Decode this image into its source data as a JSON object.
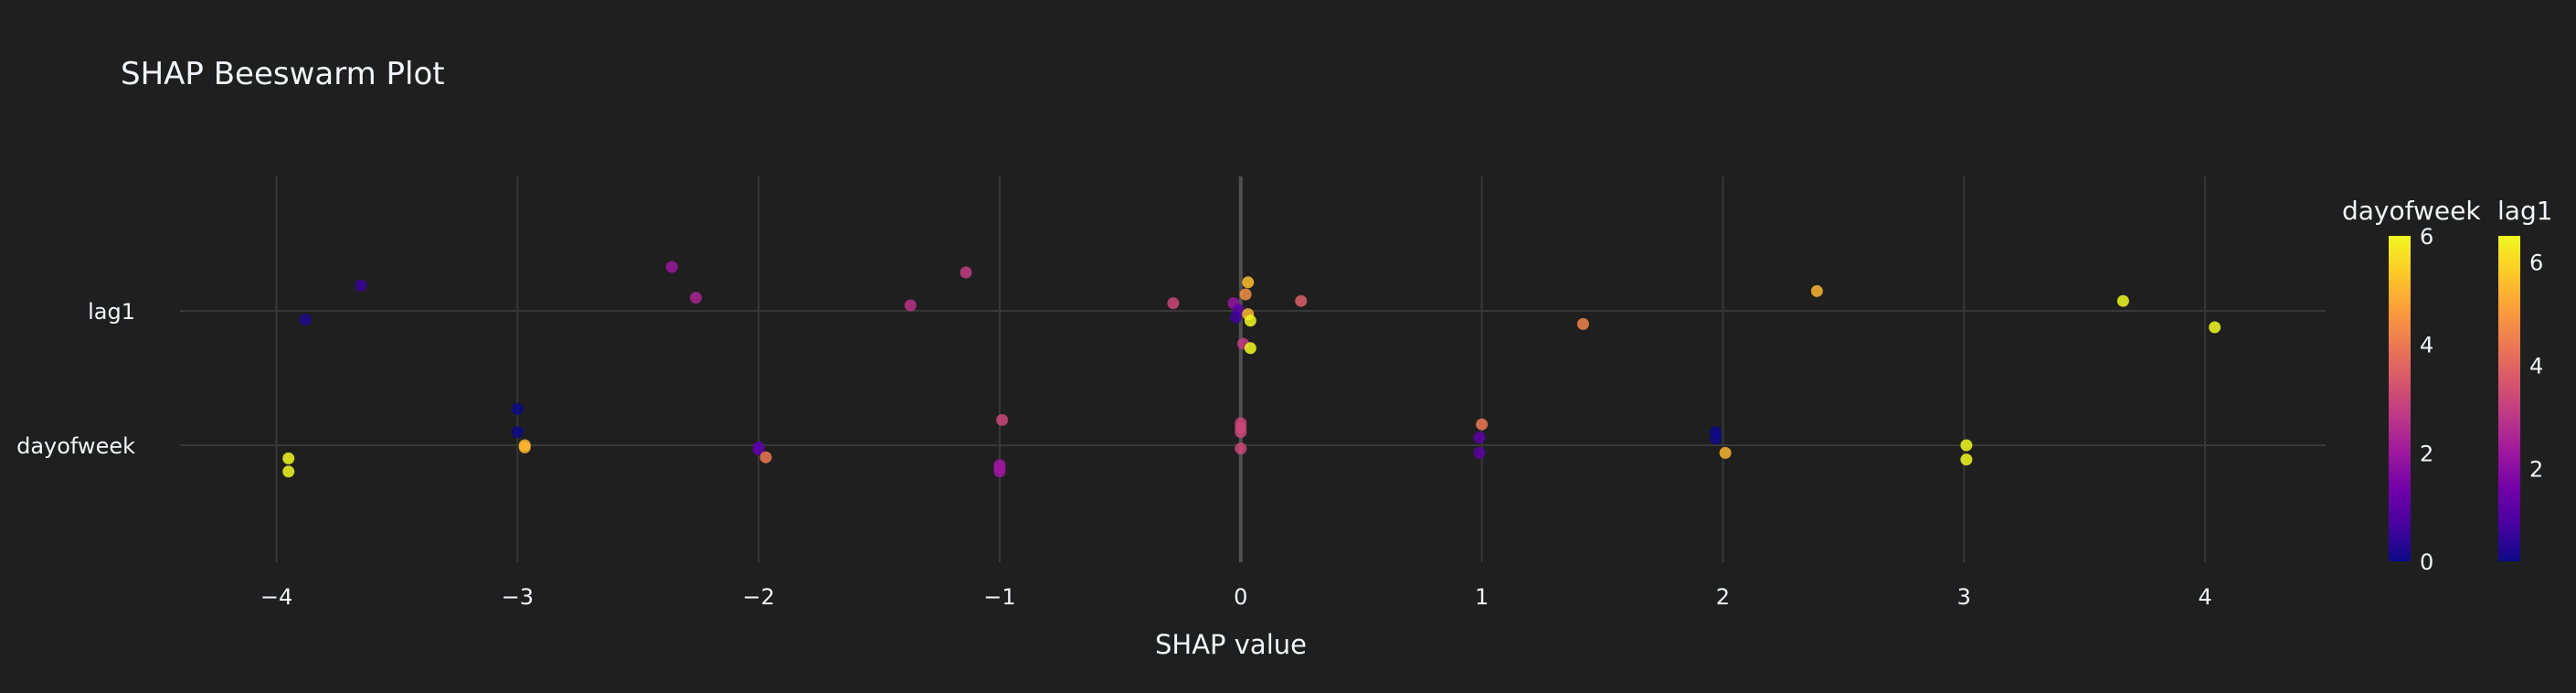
{
  "chart_data": {
    "type": "scatter",
    "title": "SHAP Beeswarm Plot",
    "xlabel": "SHAP value",
    "ylabel": "",
    "xlim": [
      -4.4,
      4.5
    ],
    "xticks": [
      -4,
      -3,
      -2,
      -1,
      0,
      1,
      2,
      3,
      4
    ],
    "xtick_labels": [
      "−4",
      "−3",
      "−2",
      "−1",
      "0",
      "1",
      "2",
      "3",
      "4"
    ],
    "categories": [
      "lag1",
      "dayofweek"
    ],
    "grid": true,
    "colorscale": [
      "#0d0887",
      "#46039f",
      "#7201a8",
      "#9c179e",
      "#bd3786",
      "#d8576b",
      "#ed7953",
      "#fb9f3a",
      "#fdca26",
      "#f0f921"
    ],
    "colorbars": [
      {
        "title": "dayofweek",
        "min": 0,
        "max": 6,
        "ticks": [
          0,
          2,
          4,
          6
        ],
        "tick_labels": [
          "0",
          "2",
          "4",
          "6"
        ]
      },
      {
        "title": "lag1",
        "min": 0.2,
        "max": 6.5,
        "ticks": [
          2,
          4,
          6
        ],
        "tick_labels": [
          "2",
          "4",
          "6"
        ]
      }
    ],
    "series": [
      {
        "name": "lag1",
        "points": [
          {
            "x": -3.88,
            "y": -0.08,
            "c": 0.2
          },
          {
            "x": -3.65,
            "y": 0.23,
            "c": 0.5
          },
          {
            "x": -2.36,
            "y": 0.4,
            "c": 2.0
          },
          {
            "x": -2.26,
            "y": 0.12,
            "c": 2.3
          },
          {
            "x": -1.37,
            "y": 0.05,
            "c": 2.6
          },
          {
            "x": -1.14,
            "y": 0.35,
            "c": 2.8
          },
          {
            "x": -0.28,
            "y": 0.07,
            "c": 3.0
          },
          {
            "x": -0.03,
            "y": 0.07,
            "c": 1.9
          },
          {
            "x": -0.01,
            "y": 0.01,
            "c": 1.0
          },
          {
            "x": -0.02,
            "y": -0.06,
            "c": 0.6
          },
          {
            "x": 0.01,
            "y": -0.3,
            "c": 2.8
          },
          {
            "x": 0.02,
            "y": 0.15,
            "c": 4.4
          },
          {
            "x": 0.03,
            "y": -0.03,
            "c": 5.0
          },
          {
            "x": 0.03,
            "y": 0.26,
            "c": 5.2
          },
          {
            "x": 0.04,
            "y": -0.09,
            "c": 6.0
          },
          {
            "x": 0.04,
            "y": -0.34,
            "c": 6.1
          },
          {
            "x": 0.25,
            "y": 0.09,
            "c": 3.5
          },
          {
            "x": 1.42,
            "y": -0.12,
            "c": 4.2
          },
          {
            "x": 2.39,
            "y": 0.18,
            "c": 5.0
          },
          {
            "x": 3.66,
            "y": 0.09,
            "c": 6.0
          },
          {
            "x": 4.04,
            "y": -0.15,
            "c": 6.2
          }
        ]
      },
      {
        "name": "dayofweek",
        "points": [
          {
            "x": -3.95,
            "y": -0.12,
            "c": 6.0
          },
          {
            "x": -3.95,
            "y": -0.24,
            "c": 6.0
          },
          {
            "x": -3.0,
            "y": 0.33,
            "c": 0.0
          },
          {
            "x": -3.0,
            "y": 0.12,
            "c": 0.0
          },
          {
            "x": -2.97,
            "y": 0.0,
            "c": 5.0
          },
          {
            "x": -2.97,
            "y": -0.02,
            "c": 5.0
          },
          {
            "x": -2.0,
            "y": -0.04,
            "c": 1.0
          },
          {
            "x": -2.0,
            "y": -0.02,
            "c": 1.0
          },
          {
            "x": -1.97,
            "y": -0.11,
            "c": 4.0
          },
          {
            "x": -0.99,
            "y": 0.23,
            "c": 3.0
          },
          {
            "x": -1.0,
            "y": -0.18,
            "c": 2.0
          },
          {
            "x": -1.0,
            "y": -0.21,
            "c": 2.0
          },
          {
            "x": -1.0,
            "y": -0.24,
            "c": 2.0
          },
          {
            "x": 0.0,
            "y": 0.2,
            "c": 3.0
          },
          {
            "x": 0.0,
            "y": 0.16,
            "c": 3.0
          },
          {
            "x": 0.0,
            "y": 0.12,
            "c": 3.0
          },
          {
            "x": 0.0,
            "y": -0.03,
            "c": 3.0
          },
          {
            "x": 1.0,
            "y": 0.19,
            "c": 4.0
          },
          {
            "x": 0.99,
            "y": 0.07,
            "c": 1.0
          },
          {
            "x": 0.99,
            "y": -0.07,
            "c": 1.0
          },
          {
            "x": 1.97,
            "y": 0.12,
            "c": 0.0
          },
          {
            "x": 1.97,
            "y": 0.06,
            "c": 0.0
          },
          {
            "x": 2.01,
            "y": -0.07,
            "c": 5.0
          },
          {
            "x": 3.01,
            "y": 0.0,
            "c": 6.0
          },
          {
            "x": 3.01,
            "y": -0.13,
            "c": 6.0
          }
        ]
      }
    ]
  }
}
